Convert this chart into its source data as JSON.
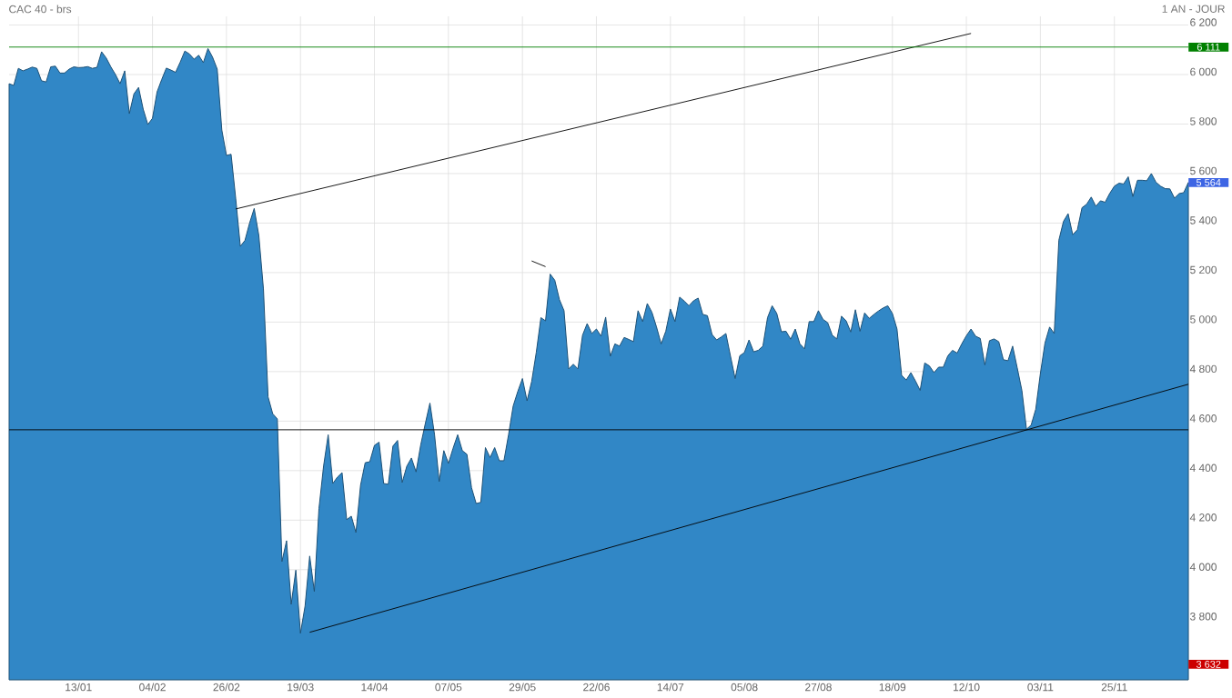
{
  "chart_data": {
    "type": "area",
    "title": "CAC 40 - brs",
    "subtitle": "1 AN - JOUR",
    "categories": [
      null,
      null,
      null,
      null,
      null,
      null,
      null,
      null,
      null,
      null,
      null,
      null,
      null,
      null,
      null,
      "13/01",
      null,
      null,
      null,
      null,
      null,
      null,
      null,
      null,
      null,
      null,
      null,
      null,
      null,
      null,
      null,
      "04/02",
      null,
      null,
      null,
      null,
      null,
      null,
      null,
      null,
      null,
      null,
      null,
      null,
      null,
      null,
      null,
      "26/02",
      null,
      null,
      null,
      null,
      null,
      null,
      null,
      null,
      null,
      null,
      null,
      null,
      null,
      null,
      null,
      "19/03",
      null,
      null,
      null,
      null,
      null,
      null,
      null,
      null,
      null,
      null,
      null,
      null,
      null,
      null,
      null,
      "14/04",
      null,
      null,
      null,
      null,
      null,
      null,
      null,
      null,
      null,
      null,
      null,
      null,
      null,
      null,
      null,
      "07/05",
      null,
      null,
      null,
      null,
      null,
      null,
      null,
      null,
      null,
      null,
      null,
      null,
      null,
      null,
      null,
      "29/05",
      null,
      null,
      null,
      null,
      null,
      null,
      null,
      null,
      null,
      null,
      null,
      null,
      null,
      null,
      null,
      "22/06",
      null,
      null,
      null,
      null,
      null,
      null,
      null,
      null,
      null,
      null,
      null,
      null,
      null,
      null,
      null,
      "14/07",
      null,
      null,
      null,
      null,
      null,
      null,
      null,
      null,
      null,
      null,
      null,
      null,
      null,
      null,
      null,
      "05/08",
      null,
      null,
      null,
      null,
      null,
      null,
      null,
      null,
      null,
      null,
      null,
      null,
      null,
      null,
      null,
      "27/08",
      null,
      null,
      null,
      null,
      null,
      null,
      null,
      null,
      null,
      null,
      null,
      null,
      null,
      null,
      null,
      "18/09",
      null,
      null,
      null,
      null,
      null,
      null,
      null,
      null,
      null,
      null,
      null,
      null,
      null,
      null,
      null,
      "12/10",
      null,
      null,
      null,
      null,
      null,
      null,
      null,
      null,
      null,
      null,
      null,
      null,
      null,
      null,
      null,
      "03/11",
      null,
      null,
      null,
      null,
      null,
      null,
      null,
      null,
      null,
      null,
      null,
      null,
      null,
      null,
      null,
      "25/11",
      null,
      null,
      null,
      null,
      null,
      null,
      null,
      null,
      null,
      null,
      null,
      null,
      null,
      null,
      null,
      null
    ],
    "ylim": [
      3555,
      6235
    ],
    "yticks": [
      {
        "value": 3600,
        "label": null
      },
      {
        "value": 3800,
        "label": "3 800"
      },
      {
        "value": 4000,
        "label": "4 000"
      },
      {
        "value": 4200,
        "label": "4 200"
      },
      {
        "value": 4400,
        "label": "4 400"
      },
      {
        "value": 4600,
        "label": "4 600"
      },
      {
        "value": 4800,
        "label": "4 800"
      },
      {
        "value": 5000,
        "label": "5 000"
      },
      {
        "value": 5200,
        "label": "5 200"
      },
      {
        "value": 5400,
        "label": "5 400"
      },
      {
        "value": 5600,
        "label": "5 600"
      },
      {
        "value": 5800,
        "label": "5 800"
      },
      {
        "value": 6000,
        "label": "6 000"
      },
      {
        "value": 6200,
        "label": "6 200"
      }
    ],
    "grid": true,
    "series": [
      {
        "color": "#3187c6",
        "values": [
          5963,
          5956,
          6025,
          6015,
          6022,
          6030,
          6025,
          5975,
          5970,
          6031,
          6034,
          6006,
          6006,
          6022,
          6031,
          6028,
          6029,
          6032,
          6025,
          6029,
          6092,
          6067,
          6031,
          6000,
          5963,
          6015,
          5842,
          5922,
          5948,
          5860,
          5798,
          5823,
          5930,
          5980,
          6026,
          6018,
          6009,
          6050,
          6095,
          6083,
          6062,
          6078,
          6048,
          6105,
          6070,
          6022,
          5776,
          5673,
          5678,
          5500,
          5306,
          5330,
          5400,
          5459,
          5350,
          5134,
          4698,
          4630,
          4609,
          4033,
          4117,
          3860,
          3998,
          3743,
          3853,
          4055,
          3912,
          4246,
          4418,
          4545,
          4348,
          4374,
          4392,
          4202,
          4216,
          4150,
          4341,
          4432,
          4436,
          4502,
          4515,
          4348,
          4345,
          4499,
          4522,
          4352,
          4418,
          4451,
          4395,
          4503,
          4590,
          4673,
          4545,
          4356,
          4481,
          4429,
          4490,
          4545,
          4481,
          4466,
          4331,
          4267,
          4272,
          4493,
          4453,
          4493,
          4440,
          4440,
          4545,
          4661,
          4720,
          4772,
          4682,
          4760,
          4878,
          5018,
          5005,
          5194,
          5169,
          5091,
          5046,
          4811,
          4830,
          4811,
          4947,
          4994,
          4954,
          4972,
          4943,
          5020,
          4862,
          4912,
          4903,
          4938,
          4930,
          4921,
          5046,
          5002,
          5075,
          5040,
          4980,
          4912,
          4963,
          5053,
          5002,
          5101,
          5085,
          5066,
          5086,
          5097,
          5031,
          5026,
          4950,
          4928,
          4940,
          4954,
          4862,
          4772,
          4864,
          4877,
          4928,
          4880,
          4886,
          4903,
          5018,
          5066,
          5035,
          4961,
          4963,
          4931,
          4972,
          4912,
          4892,
          5002,
          5002,
          5046,
          5011,
          4998,
          4947,
          4932,
          5024,
          5005,
          4960,
          5050,
          4963,
          5037,
          5015,
          5031,
          5045,
          5057,
          5066,
          5035,
          4972,
          4785,
          4766,
          4796,
          4762,
          4724,
          4835,
          4823,
          4796,
          4818,
          4818,
          4864,
          4886,
          4875,
          4912,
          4945,
          4972,
          4943,
          4934,
          4827,
          4925,
          4932,
          4921,
          4848,
          4844,
          4903,
          4815,
          4724,
          4567,
          4584,
          4648,
          4792,
          4916,
          4980,
          4954,
          5331,
          5407,
          5438,
          5353,
          5373,
          5462,
          5476,
          5505,
          5468,
          5490,
          5484,
          5520,
          5549,
          5561,
          5558,
          5587,
          5507,
          5573,
          5573,
          5571,
          5600,
          5565,
          5549,
          5539,
          5538,
          5501,
          5519,
          5523,
          5564
        ]
      },
      {
        "type": "line",
        "color": "#000000",
        "values": [
          null,
          null,
          null,
          null,
          null,
          null,
          null,
          null,
          null,
          null,
          null,
          null,
          null,
          null,
          null,
          null,
          null,
          null,
          null,
          null,
          null,
          null,
          null,
          null,
          null,
          null,
          null,
          null,
          null,
          null,
          null,
          null,
          null,
          null,
          null,
          null,
          null,
          null,
          null,
          null,
          null,
          null,
          null,
          null,
          null,
          null,
          null,
          null,
          null,
          5457,
          null,
          null,
          null,
          null,
          null,
          null,
          null,
          null,
          null,
          null,
          null,
          null,
          null,
          null,
          null,
          null,
          null,
          null,
          null,
          null,
          null,
          null,
          null,
          null,
          null,
          null,
          null,
          null,
          null,
          null,
          null,
          null,
          null,
          null,
          null,
          null,
          null,
          null,
          null,
          null,
          null,
          null,
          null,
          null,
          null,
          null,
          null,
          null,
          null,
          null,
          null,
          null,
          null,
          null,
          null,
          null,
          null,
          null,
          null,
          null,
          null,
          null,
          null,
          null,
          null,
          null,
          null,
          null,
          null,
          null,
          null,
          null,
          null,
          null,
          null,
          null,
          null,
          null,
          null,
          null,
          null,
          null,
          null,
          null,
          null,
          null,
          null,
          null,
          null,
          null,
          null,
          null,
          null,
          null,
          null,
          null,
          null,
          null,
          null,
          null,
          null,
          null,
          null,
          null,
          null,
          null,
          null,
          null,
          null,
          null,
          null,
          null,
          null,
          null,
          null,
          null,
          null,
          null,
          null,
          null,
          null,
          null,
          null,
          null,
          null,
          null,
          null,
          null,
          null,
          null,
          null,
          null,
          null,
          null,
          null,
          null,
          null,
          null,
          null,
          null,
          null,
          null,
          null,
          null,
          null,
          null,
          null,
          null,
          null,
          null,
          null,
          null,
          null,
          null,
          null,
          null,
          null,
          null,
          6166,
          null,
          null,
          null,
          null,
          null,
          null,
          null,
          null,
          null,
          null,
          null,
          null,
          null,
          null,
          null,
          null,
          null,
          null,
          null,
          null,
          null,
          null,
          null,
          null,
          null,
          null,
          null,
          null,
          null,
          null,
          null,
          null,
          null,
          null,
          null,
          null,
          null,
          null,
          null,
          null,
          null,
          null,
          null,
          null,
          null,
          null,
          null
        ]
      },
      {
        "type": "line",
        "color": "#000000",
        "values": [
          null,
          null,
          null,
          null,
          null,
          null,
          null,
          null,
          null,
          null,
          null,
          null,
          null,
          null,
          null,
          null,
          null,
          null,
          null,
          null,
          null,
          null,
          null,
          null,
          null,
          null,
          null,
          null,
          null,
          null,
          null,
          null,
          null,
          null,
          null,
          null,
          null,
          null,
          null,
          null,
          null,
          null,
          null,
          null,
          null,
          null,
          null,
          null,
          null,
          null,
          null,
          null,
          null,
          null,
          null,
          null,
          null,
          null,
          null,
          null,
          null,
          null,
          null,
          null,
          null,
          3747,
          null,
          null,
          null,
          null,
          null,
          null,
          null,
          null,
          null,
          null,
          null,
          null,
          null,
          null,
          null,
          null,
          null,
          null,
          null,
          null,
          null,
          null,
          null,
          null,
          null,
          null,
          null,
          null,
          null,
          null,
          null,
          null,
          null,
          null,
          null,
          null,
          null,
          null,
          null,
          null,
          null,
          null,
          null,
          null,
          null,
          null,
          null,
          null,
          null,
          null,
          null,
          null,
          null,
          null,
          null,
          null,
          null,
          null,
          null,
          null,
          null,
          null,
          null,
          null,
          null,
          null,
          null,
          null,
          null,
          null,
          null,
          null,
          null,
          null,
          null,
          null,
          null,
          null,
          null,
          null,
          null,
          null,
          null,
          null,
          null,
          null,
          null,
          null,
          null,
          null,
          null,
          null,
          null,
          null,
          null,
          null,
          null,
          null,
          null,
          null,
          null,
          null,
          null,
          null,
          null,
          null,
          null,
          null,
          null,
          null,
          null,
          null,
          null,
          null,
          null,
          null,
          null,
          null,
          null,
          null,
          null,
          null,
          null,
          null,
          null,
          null,
          null,
          null,
          null,
          null,
          null,
          null,
          null,
          null,
          null,
          null,
          null,
          null,
          null,
          null,
          null,
          null,
          null,
          null,
          null,
          null,
          null,
          null,
          null,
          null,
          null,
          null,
          null,
          null,
          null,
          null,
          null,
          null,
          null,
          null,
          null,
          null,
          null,
          null,
          null,
          null,
          null,
          null,
          null,
          null,
          null,
          null,
          null,
          null,
          null,
          null,
          null,
          null,
          null,
          null,
          null,
          null,
          null,
          null,
          null,
          null,
          null,
          null,
          null,
          4749
        ]
      },
      {
        "type": "line",
        "color": "#000000",
        "values": [
          null,
          null,
          null,
          null,
          null,
          null,
          null,
          null,
          null,
          null,
          null,
          null,
          null,
          null,
          null,
          null,
          null,
          null,
          null,
          null,
          null,
          null,
          null,
          null,
          null,
          null,
          null,
          null,
          null,
          null,
          null,
          null,
          null,
          null,
          null,
          null,
          null,
          null,
          null,
          null,
          null,
          null,
          null,
          null,
          null,
          null,
          null,
          null,
          null,
          null,
          null,
          null,
          null,
          null,
          null,
          null,
          null,
          null,
          null,
          null,
          null,
          null,
          null,
          null,
          null,
          null,
          null,
          null,
          null,
          null,
          null,
          null,
          null,
          null,
          null,
          null,
          null,
          null,
          null,
          null,
          null,
          null,
          null,
          null,
          null,
          null,
          null,
          null,
          null,
          null,
          null,
          null,
          null,
          null,
          null,
          null,
          null,
          null,
          null,
          null,
          null,
          null,
          null,
          null,
          null,
          null,
          null,
          null,
          null,
          null,
          null,
          null,
          null,
          5247,
          null,
          null,
          5224,
          null,
          null,
          null,
          null,
          null,
          null,
          null,
          null,
          null,
          null,
          null,
          null,
          null,
          null,
          null,
          null,
          null,
          null,
          null,
          null,
          null,
          null,
          null,
          null,
          null,
          null,
          null,
          null,
          null,
          null,
          null,
          null,
          null,
          null,
          null,
          null,
          null,
          null,
          null,
          null,
          null,
          null,
          null,
          null,
          null,
          null,
          null,
          null,
          null,
          null,
          null,
          null,
          null,
          null,
          null,
          null,
          null,
          null,
          null,
          null,
          null,
          null,
          null,
          null,
          null,
          null,
          null,
          null,
          null,
          null,
          null,
          null,
          null,
          null,
          null,
          null,
          null,
          null,
          null,
          null,
          null,
          null,
          null,
          null,
          null,
          null,
          null,
          null,
          null,
          null,
          null,
          null,
          null,
          null,
          null,
          null,
          null,
          null,
          null,
          null,
          null,
          null,
          null,
          null,
          null,
          null,
          null,
          null,
          null,
          null,
          null,
          null,
          null,
          null,
          null,
          null,
          null,
          null,
          null,
          null,
          null,
          null,
          null,
          null,
          null,
          null,
          null,
          null,
          null,
          null,
          null,
          null,
          null,
          null,
          null,
          null,
          null,
          null,
          null
        ]
      }
    ],
    "ref_lines": [
      {
        "axis": "y",
        "value": 6111,
        "label": "6 111",
        "color": "#008000"
      },
      {
        "axis": "y",
        "value": 4565,
        "color": "#000000"
      }
    ],
    "annotations": [
      "5 564",
      "3 632"
    ]
  }
}
